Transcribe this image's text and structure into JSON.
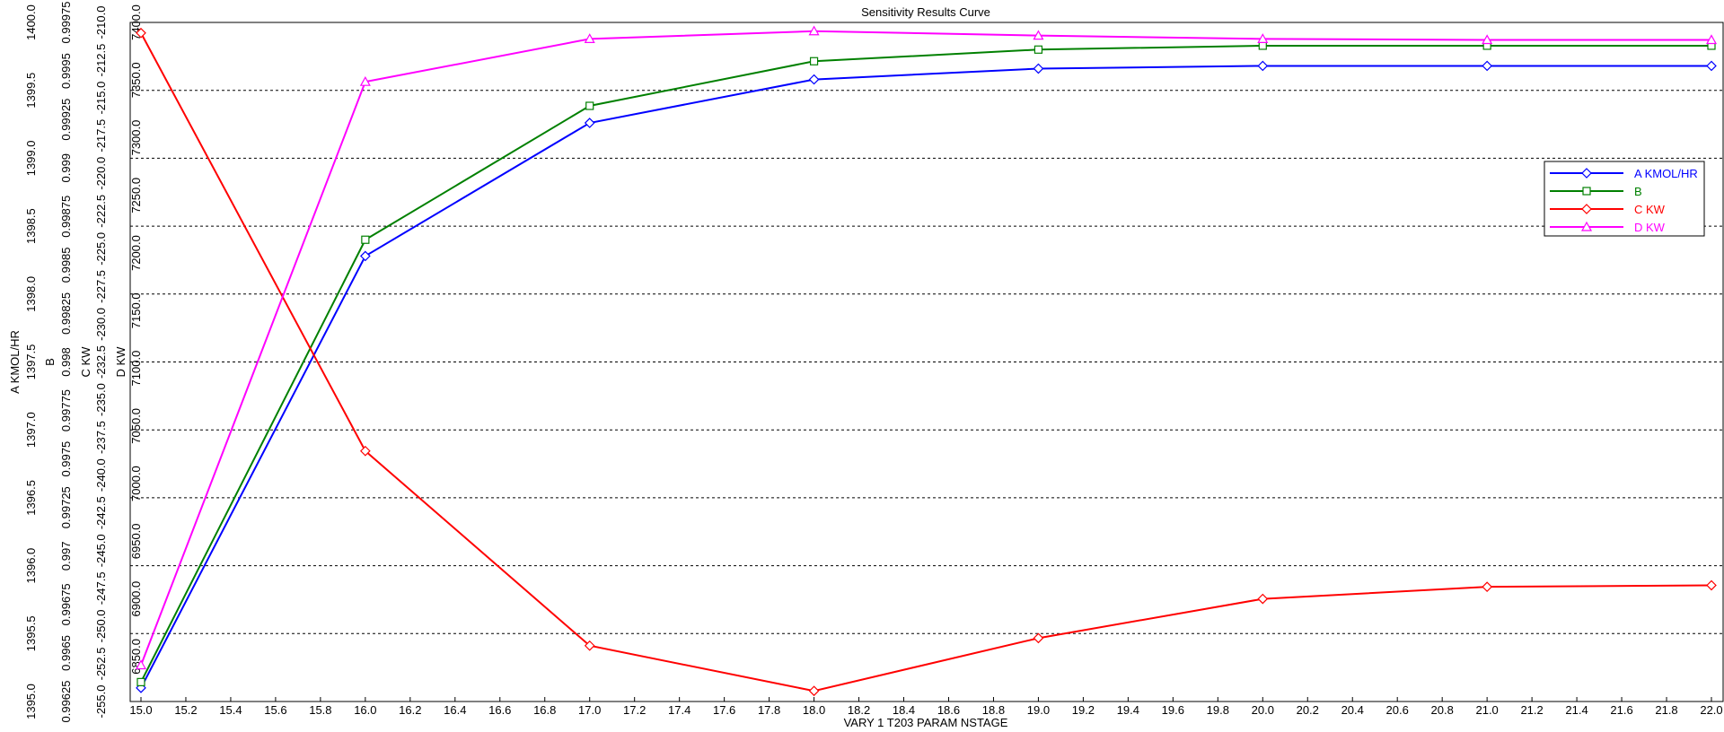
{
  "chart_data": {
    "type": "line",
    "title": "Sensitivity Results Curve",
    "x_label": "VARY    1 T203 PARAM NSTAGE",
    "x": [
      15,
      16,
      17,
      18,
      19,
      20,
      21,
      22
    ],
    "xlim": [
      15,
      22
    ],
    "xticks": [
      {
        "value": 15,
        "label": "15.0"
      },
      {
        "value": 15.2,
        "label": "15.2"
      },
      {
        "value": 15.4,
        "label": "15.4"
      },
      {
        "value": 15.6,
        "label": "15.6"
      },
      {
        "value": 15.8,
        "label": "15.8"
      },
      {
        "value": 16,
        "label": "16.0"
      },
      {
        "value": 16.2,
        "label": "16.2"
      },
      {
        "value": 16.4,
        "label": "16.4"
      },
      {
        "value": 16.6,
        "label": "16.6"
      },
      {
        "value": 16.8,
        "label": "16.8"
      },
      {
        "value": 17,
        "label": "17.0"
      },
      {
        "value": 17.2,
        "label": "17.2"
      },
      {
        "value": 17.4,
        "label": "17.4"
      },
      {
        "value": 17.6,
        "label": "17.6"
      },
      {
        "value": 17.8,
        "label": "17.8"
      },
      {
        "value": 18,
        "label": "18.0"
      },
      {
        "value": 18.2,
        "label": "18.2"
      },
      {
        "value": 18.4,
        "label": "18.4"
      },
      {
        "value": 18.6,
        "label": "18.6"
      },
      {
        "value": 18.8,
        "label": "18.8"
      },
      {
        "value": 19,
        "label": "19.0"
      },
      {
        "value": 19.2,
        "label": "19.2"
      },
      {
        "value": 19.4,
        "label": "19.4"
      },
      {
        "value": 19.6,
        "label": "19.6"
      },
      {
        "value": 19.8,
        "label": "19.8"
      },
      {
        "value": 20,
        "label": "20.0"
      },
      {
        "value": 20.2,
        "label": "20.2"
      },
      {
        "value": 20.4,
        "label": "20.4"
      },
      {
        "value": 20.6,
        "label": "20.6"
      },
      {
        "value": 20.8,
        "label": "20.8"
      },
      {
        "value": 21,
        "label": "21.0"
      },
      {
        "value": 21.2,
        "label": "21.2"
      },
      {
        "value": 21.4,
        "label": "21.4"
      },
      {
        "value": 21.6,
        "label": "21.6"
      },
      {
        "value": 21.8,
        "label": "21.8"
      },
      {
        "value": 22,
        "label": "22.0"
      }
    ],
    "grid": true,
    "series": [
      {
        "name": "A KMOL/HR",
        "color": "#0000ff",
        "marker": "diamond",
        "ylim": [
          1395,
          1400
        ],
        "yticks": [
          {
            "value": 1395,
            "label": "1395.0"
          },
          {
            "value": 1395.5,
            "label": "1395.5"
          },
          {
            "value": 1396,
            "label": "1396.0"
          },
          {
            "value": 1396.5,
            "label": "1396.5"
          },
          {
            "value": 1397,
            "label": "1397.0"
          },
          {
            "value": 1397.5,
            "label": "1397.5"
          },
          {
            "value": 1398,
            "label": "1398.0"
          },
          {
            "value": 1398.5,
            "label": "1398.5"
          },
          {
            "value": 1399,
            "label": "1399.0"
          },
          {
            "value": 1399.5,
            "label": "1399.5"
          },
          {
            "value": 1400,
            "label": "1400.0"
          }
        ],
        "values": [
          1395.1,
          1398.28,
          1399.26,
          1399.58,
          1399.66,
          1399.68,
          1399.68,
          1399.68
        ]
      },
      {
        "name": "B",
        "color": "#008000",
        "marker": "square",
        "ylim": [
          0.99625,
          0.99975
        ],
        "yticks": [
          0.99625,
          0.9965,
          0.99675,
          0.997,
          0.99725,
          0.9975,
          0.99775,
          0.998,
          0.99825,
          0.9985,
          0.99875,
          0.999,
          0.99925,
          0.9995,
          0.99975
        ],
        "values": [
          0.99635,
          0.99863,
          0.99932,
          0.99955,
          0.99961,
          0.99963,
          0.99963,
          0.99963
        ]
      },
      {
        "name": "C KW",
        "color": "#ff0000",
        "marker": "diamond",
        "ylim": [
          -255,
          -210
        ],
        "yticks": [
          {
            "value": -255,
            "label": "-255.0"
          },
          {
            "value": -252.5,
            "label": "-252.5"
          },
          {
            "value": -250,
            "label": "-250.0"
          },
          {
            "value": -247.5,
            "label": "-247.5"
          },
          {
            "value": -245,
            "label": "-245.0"
          },
          {
            "value": -242.5,
            "label": "-242.5"
          },
          {
            "value": -240,
            "label": "-240.0"
          },
          {
            "value": -237.5,
            "label": "-237.5"
          },
          {
            "value": -235,
            "label": "-235.0"
          },
          {
            "value": -232.5,
            "label": "-232.5"
          },
          {
            "value": -230,
            "label": "-230.0"
          },
          {
            "value": -227.5,
            "label": "-227.5"
          },
          {
            "value": -225,
            "label": "-225.0"
          },
          {
            "value": -222.5,
            "label": "-222.5"
          },
          {
            "value": -220,
            "label": "-220.0"
          },
          {
            "value": -217.5,
            "label": "-217.5"
          },
          {
            "value": -215,
            "label": "-215.0"
          },
          {
            "value": -212.5,
            "label": "-212.5"
          },
          {
            "value": -210,
            "label": "-210.0"
          }
        ],
        "values": [
          -210.7,
          -238.4,
          -251.3,
          -254.3,
          -250.8,
          -248.2,
          -247.4,
          -247.3
        ]
      },
      {
        "name": "D KW",
        "color": "#ff00ff",
        "marker": "triangle",
        "ylim": [
          6811,
          7400
        ],
        "yticks": [
          {
            "value": 6850,
            "label": "6850.0"
          },
          {
            "value": 6900,
            "label": "6900.0"
          },
          {
            "value": 6950,
            "label": "6950.0"
          },
          {
            "value": 7000,
            "label": "7000.0"
          },
          {
            "value": 7050,
            "label": "7050.0"
          },
          {
            "value": 7100,
            "label": "7100.0"
          },
          {
            "value": 7150,
            "label": "7150.0"
          },
          {
            "value": 7200,
            "label": "7200.0"
          },
          {
            "value": 7250,
            "label": "7250.0"
          },
          {
            "value": 7300,
            "label": "7300.0"
          },
          {
            "value": 7350,
            "label": "7350.0"
          },
          {
            "value": 7400,
            "label": "7400.0"
          }
        ],
        "values": [
          6842.5,
          7348.5,
          7385.7,
          7392.4,
          7388.6,
          7385.7,
          7384.8,
          7384.8
        ]
      }
    ]
  }
}
